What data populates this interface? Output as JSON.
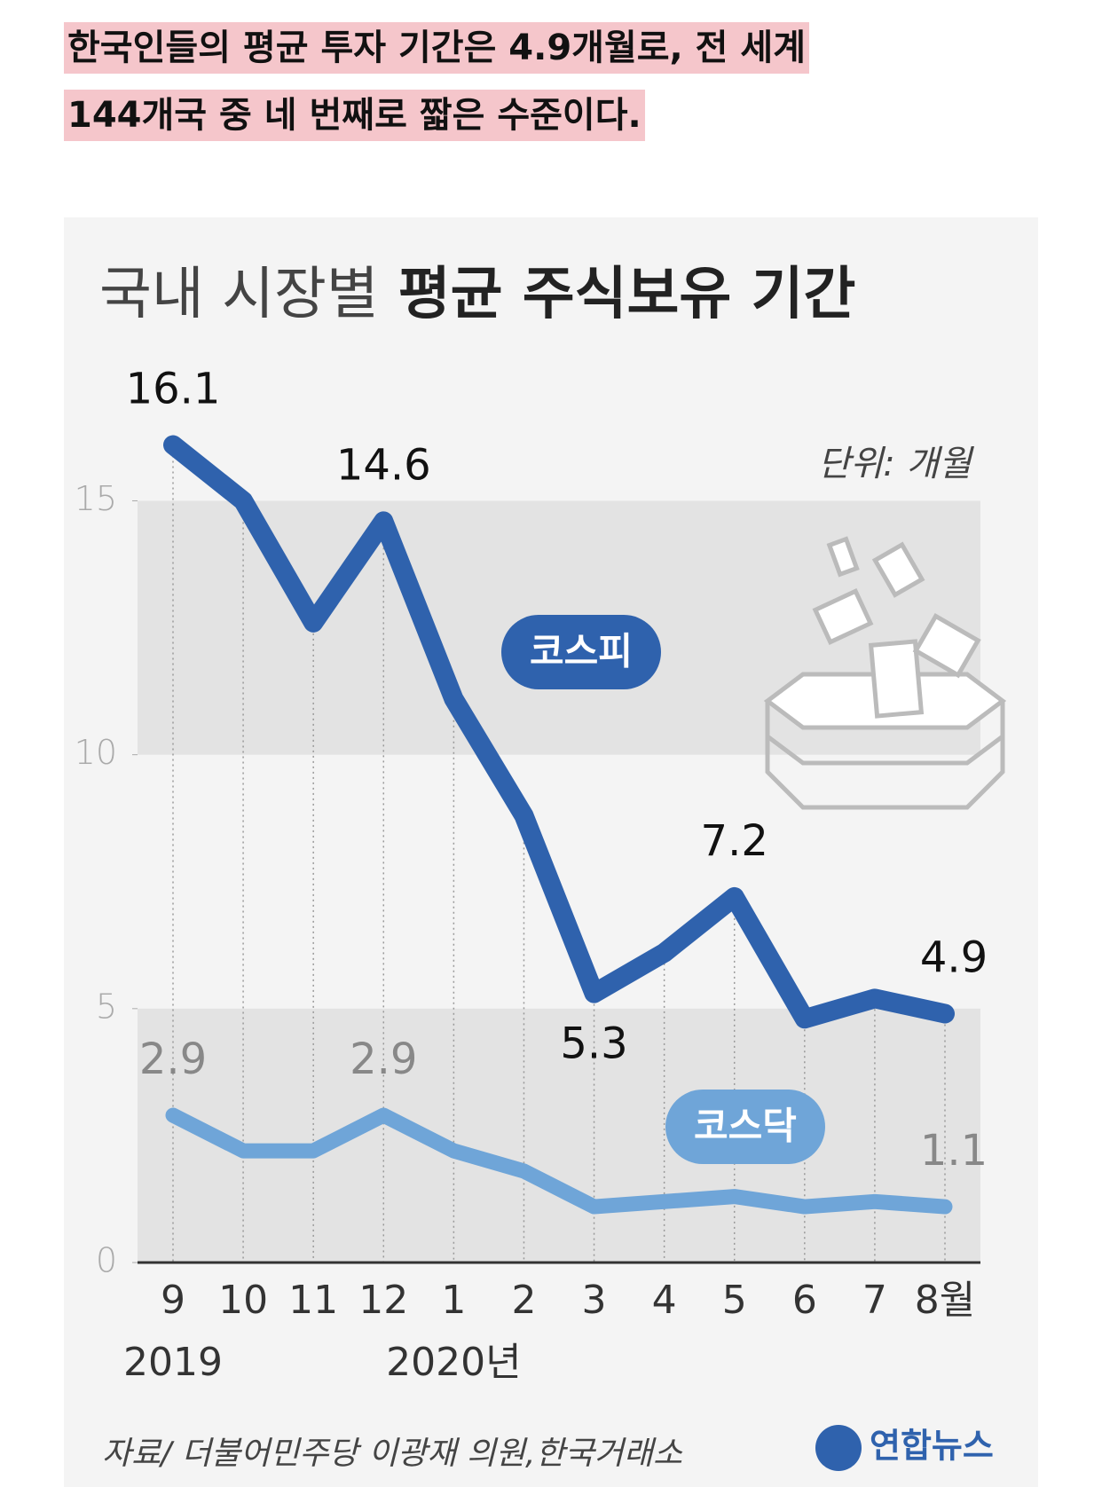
{
  "caption": [
    "한국인들의 평균 투자 기간은 4.9개월로, 전 세계",
    "144개국 중 네 번째로 짧은 수준이다."
  ],
  "chart_data": {
    "type": "line",
    "title": [
      "국내 시장별",
      "평균 주식보유 기간"
    ],
    "unit": "단위: 개월",
    "categories": [
      "9",
      "10",
      "11",
      "12",
      "1",
      "2",
      "3",
      "4",
      "5",
      "6",
      "7",
      "8월"
    ],
    "year_labels": [
      "2019",
      null,
      null,
      null,
      "2020년",
      null,
      null,
      null,
      null,
      null,
      null,
      null
    ],
    "series": [
      {
        "name": "코스피",
        "color": "#2f62ad",
        "values": [
          16.1,
          15.0,
          12.6,
          14.6,
          11.1,
          8.8,
          5.3,
          6.1,
          7.2,
          4.8,
          5.2,
          4.9
        ],
        "value_labels": [
          "16.1",
          null,
          null,
          "14.6",
          null,
          null,
          "5.3",
          null,
          "7.2",
          null,
          null,
          "4.9"
        ]
      },
      {
        "name": "코스닥",
        "color": "#6fa5d8",
        "values": [
          2.9,
          2.2,
          2.2,
          2.9,
          2.2,
          1.8,
          1.1,
          1.2,
          1.3,
          1.1,
          1.2,
          1.1
        ],
        "value_labels": [
          "2.9",
          null,
          null,
          "2.9",
          null,
          null,
          null,
          null,
          null,
          null,
          null,
          "1.1"
        ]
      }
    ],
    "ylim": [
      0,
      17
    ],
    "yticks": [
      0,
      5,
      10,
      15
    ],
    "bands": true,
    "source": "자료/ 더불어민주당 이광재 의원,한국거래소",
    "logo": "연합뉴스"
  }
}
